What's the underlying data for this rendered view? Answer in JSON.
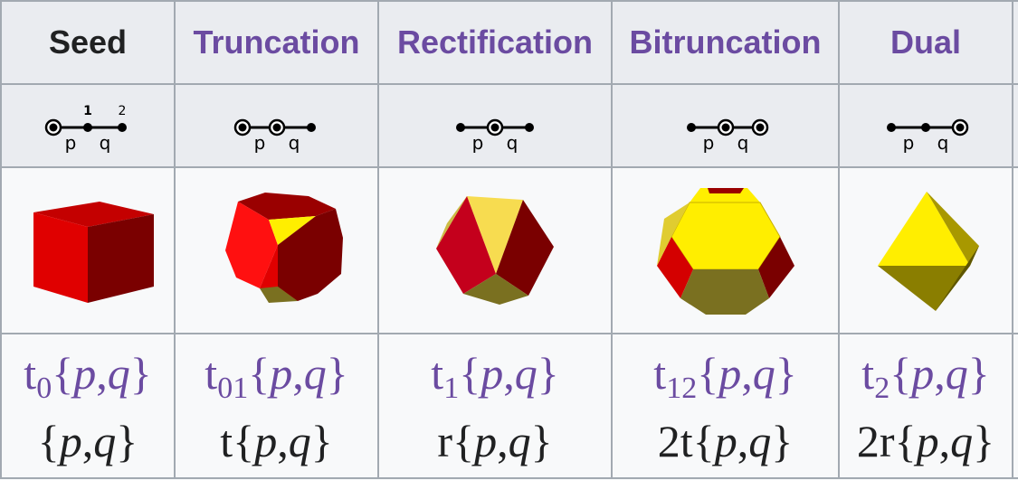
{
  "headers": [
    {
      "label": "Seed",
      "linked": false
    },
    {
      "label": "Truncation",
      "linked": true
    },
    {
      "label": "Rectification",
      "linked": true
    },
    {
      "label": "Bitruncation",
      "linked": true
    },
    {
      "label": "Dual",
      "linked": true
    }
  ],
  "diagram": {
    "label_p": "p",
    "label_q": "q",
    "mark_1": "1",
    "mark_2": "2"
  },
  "images": [
    {
      "name": "cube"
    },
    {
      "name": "truncated cube"
    },
    {
      "name": "cuboctahedron"
    },
    {
      "name": "truncated octahedron"
    },
    {
      "name": "octahedron"
    }
  ],
  "symbols": [
    {
      "t_sub": "0",
      "t_prefix": "t",
      "plain_prefix": ""
    },
    {
      "t_sub": "01",
      "t_prefix": "t",
      "plain_prefix": "t"
    },
    {
      "t_sub": "1",
      "t_prefix": "t",
      "plain_prefix": "r"
    },
    {
      "t_sub": "12",
      "t_prefix": "t",
      "plain_prefix": "2t"
    },
    {
      "t_sub": "2",
      "t_prefix": "t",
      "plain_prefix": "2r"
    }
  ],
  "symbol_body": {
    "open": "{",
    "p": "p",
    "sep": ",",
    "q": "q",
    "close": "}"
  },
  "colors": {
    "link": "#6b4ba1",
    "red": "#e00000",
    "dark_red": "#8a0000",
    "yellow": "#ffee00",
    "olive": "#7a7020"
  }
}
